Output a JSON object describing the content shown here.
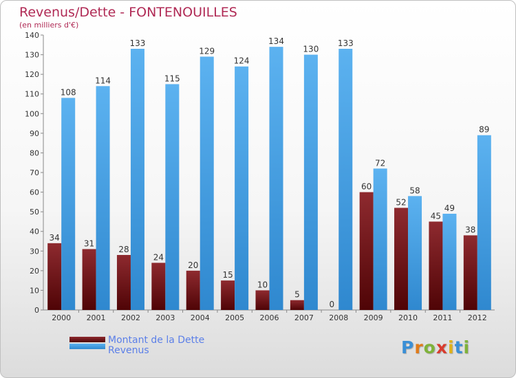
{
  "header": {
    "title": "Revenus/Dette - FONTENOUILLES",
    "subtitle": "(en milliers d'€)"
  },
  "legend": {
    "debt_label": "Montant de la Dette",
    "revenue_label": "Revenus"
  },
  "logo": {
    "text": "Proxiti"
  },
  "colors": {
    "debt": "#7a1a1e",
    "revenue": "#4aa3e8",
    "title": "#b02a55",
    "legend_text": "#5b7fe8"
  },
  "chart_data": {
    "type": "bar",
    "title": "Revenus/Dette - FONTENOUILLES",
    "subtitle": "(en milliers d'€)",
    "categories": [
      "2000",
      "2001",
      "2002",
      "2003",
      "2004",
      "2005",
      "2006",
      "2007",
      "2008",
      "2009",
      "2010",
      "2011",
      "2012"
    ],
    "series": [
      {
        "name": "Montant de la Dette",
        "values": [
          34,
          31,
          28,
          24,
          20,
          15,
          10,
          5,
          0,
          60,
          52,
          45,
          38
        ]
      },
      {
        "name": "Revenus",
        "values": [
          108,
          114,
          133,
          115,
          129,
          124,
          134,
          130,
          133,
          72,
          58,
          49,
          89
        ]
      }
    ],
    "ylim": [
      0,
      140
    ],
    "yticks": [
      0,
      10,
      20,
      30,
      40,
      50,
      60,
      70,
      80,
      90,
      100,
      110,
      120,
      130,
      140
    ],
    "grid": false,
    "legend_position": "bottom-left"
  }
}
